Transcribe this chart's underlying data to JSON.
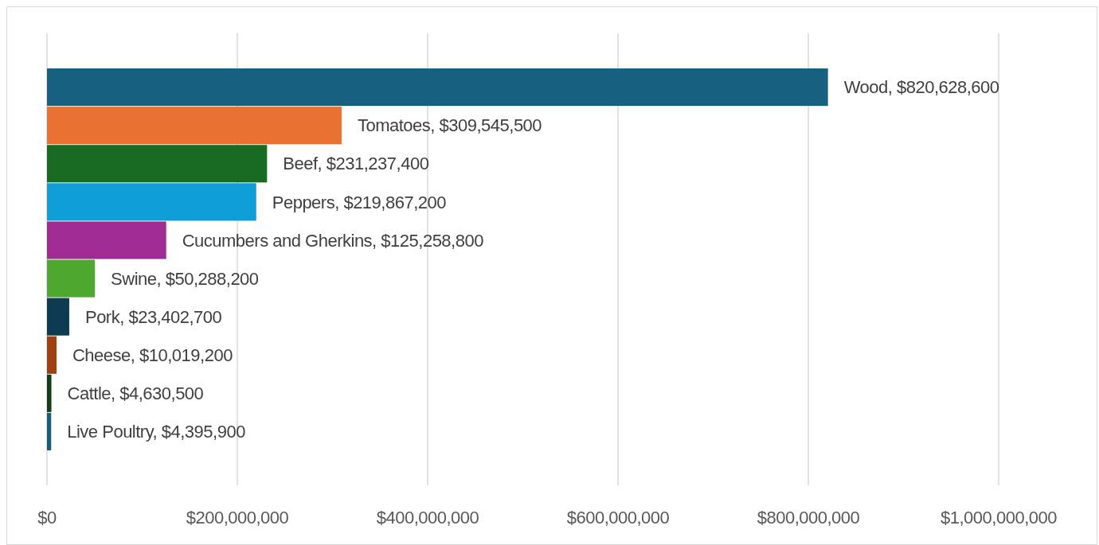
{
  "chart_data": {
    "type": "bar",
    "orientation": "horizontal",
    "categories": [
      "Wood",
      "Tomatoes",
      "Beef",
      "Peppers",
      "Cucumbers and Gherkins",
      "Swine",
      "Pork",
      "Cheese",
      "Cattle",
      "Live Poultry"
    ],
    "values": [
      820628600,
      309545500,
      231237400,
      219867200,
      125258800,
      50288200,
      23402700,
      10019200,
      4630500,
      4395900
    ],
    "colors": [
      "#17607f",
      "#e97132",
      "#196b24",
      "#0f9ed5",
      "#a02b93",
      "#4ea72e",
      "#0e3a52",
      "#a0400f",
      "#0f4015",
      "#125f7f"
    ],
    "value_labels": [
      ", $820,628,600",
      ", $309,545,500",
      ", $231,237,400",
      ", $219,867,200",
      ", $125,258,800",
      ", $50,288,200",
      ", $23,402,700",
      ", $10,019,200",
      ", $4,630,500",
      ", $4,395,900"
    ],
    "xlim": [
      0,
      1000000000
    ],
    "xticks": [
      {
        "value": 0,
        "label": "$0"
      },
      {
        "value": 200000000,
        "label": "$200,000,000"
      },
      {
        "value": 400000000,
        "label": "$400,000,000"
      },
      {
        "value": 600000000,
        "label": "$600,000,000"
      },
      {
        "value": 800000000,
        "label": "$800,000,000"
      },
      {
        "value": 1000000000,
        "label": "$1,000,000,000"
      }
    ],
    "grid": "x"
  }
}
